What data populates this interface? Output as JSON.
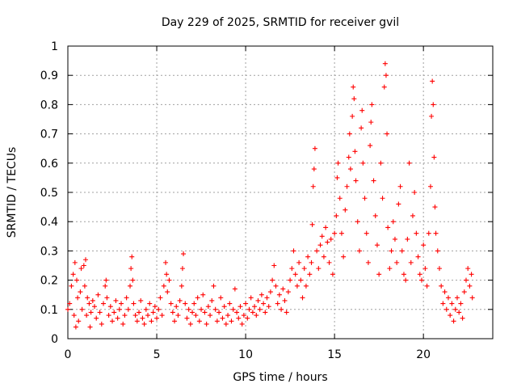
{
  "chart_data": {
    "type": "scatter",
    "title": "Day 229 of 2025, SRMTID for receiver gvil",
    "xlabel": "GPS time / hours",
    "ylabel": "SRMTID / TECUs",
    "xlim": [
      0,
      23.9
    ],
    "ylim": [
      0,
      1
    ],
    "x_ticks": [
      0,
      5,
      10,
      15,
      20
    ],
    "x_tick_labels": [
      "0",
      "5",
      "10",
      "15",
      "20"
    ],
    "y_ticks": [
      0,
      0.1,
      0.2,
      0.3,
      0.4,
      0.5,
      0.6,
      0.7,
      0.8,
      0.9,
      1
    ],
    "y_tick_labels": [
      "0",
      "0.1",
      "0.2",
      "0.3",
      "0.4",
      "0.5",
      "0.6",
      "0.7",
      "0.8",
      "0.9",
      "1"
    ],
    "grid": true,
    "marker": "plus",
    "color": "#ff0000",
    "series": [
      {
        "name": "SRMTID",
        "points": [
          [
            0.0,
            0.1
          ],
          [
            0.1,
            0.12
          ],
          [
            0.2,
            0.18
          ],
          [
            0.3,
            0.22
          ],
          [
            0.35,
            0.08
          ],
          [
            0.4,
            0.26
          ],
          [
            0.45,
            0.04
          ],
          [
            0.5,
            0.2
          ],
          [
            0.55,
            0.14
          ],
          [
            0.6,
            0.06
          ],
          [
            0.7,
            0.16
          ],
          [
            0.75,
            0.24
          ],
          [
            0.8,
            0.1
          ],
          [
            0.9,
            0.25
          ],
          [
            0.95,
            0.18
          ],
          [
            1.0,
            0.27
          ],
          [
            1.05,
            0.08
          ],
          [
            1.1,
            0.14
          ],
          [
            1.2,
            0.12
          ],
          [
            1.25,
            0.04
          ],
          [
            1.3,
            0.09
          ],
          [
            1.4,
            0.13
          ],
          [
            1.5,
            0.11
          ],
          [
            1.6,
            0.07
          ],
          [
            1.7,
            0.15
          ],
          [
            1.8,
            0.09
          ],
          [
            1.9,
            0.05
          ],
          [
            2.0,
            0.12
          ],
          [
            2.1,
            0.18
          ],
          [
            2.15,
            0.2
          ],
          [
            2.2,
            0.14
          ],
          [
            2.3,
            0.08
          ],
          [
            2.4,
            0.11
          ],
          [
            2.5,
            0.06
          ],
          [
            2.6,
            0.09
          ],
          [
            2.7,
            0.13
          ],
          [
            2.8,
            0.07
          ],
          [
            2.9,
            0.1
          ],
          [
            3.0,
            0.12
          ],
          [
            3.1,
            0.05
          ],
          [
            3.2,
            0.08
          ],
          [
            3.3,
            0.14
          ],
          [
            3.4,
            0.1
          ],
          [
            3.5,
            0.18
          ],
          [
            3.55,
            0.24
          ],
          [
            3.6,
            0.28
          ],
          [
            3.65,
            0.2
          ],
          [
            3.7,
            0.12
          ],
          [
            3.8,
            0.08
          ],
          [
            3.9,
            0.06
          ],
          [
            4.0,
            0.09
          ],
          [
            4.1,
            0.13
          ],
          [
            4.2,
            0.07
          ],
          [
            4.3,
            0.05
          ],
          [
            4.4,
            0.1
          ],
          [
            4.5,
            0.08
          ],
          [
            4.6,
            0.12
          ],
          [
            4.7,
            0.06
          ],
          [
            4.8,
            0.09
          ],
          [
            4.9,
            0.11
          ],
          [
            5.0,
            0.07
          ],
          [
            5.1,
            0.1
          ],
          [
            5.2,
            0.14
          ],
          [
            5.3,
            0.08
          ],
          [
            5.4,
            0.18
          ],
          [
            5.5,
            0.26
          ],
          [
            5.55,
            0.22
          ],
          [
            5.6,
            0.16
          ],
          [
            5.7,
            0.2
          ],
          [
            5.8,
            0.12
          ],
          [
            5.9,
            0.09
          ],
          [
            6.0,
            0.06
          ],
          [
            6.1,
            0.11
          ],
          [
            6.2,
            0.08
          ],
          [
            6.3,
            0.13
          ],
          [
            6.4,
            0.18
          ],
          [
            6.45,
            0.24
          ],
          [
            6.5,
            0.29
          ],
          [
            6.6,
            0.12
          ],
          [
            6.7,
            0.07
          ],
          [
            6.8,
            0.1
          ],
          [
            6.9,
            0.05
          ],
          [
            7.0,
            0.09
          ],
          [
            7.1,
            0.12
          ],
          [
            7.2,
            0.08
          ],
          [
            7.3,
            0.14
          ],
          [
            7.4,
            0.06
          ],
          [
            7.5,
            0.1
          ],
          [
            7.6,
            0.15
          ],
          [
            7.7,
            0.09
          ],
          [
            7.8,
            0.05
          ],
          [
            7.9,
            0.11
          ],
          [
            8.0,
            0.08
          ],
          [
            8.1,
            0.13
          ],
          [
            8.2,
            0.18
          ],
          [
            8.3,
            0.1
          ],
          [
            8.4,
            0.06
          ],
          [
            8.5,
            0.09
          ],
          [
            8.6,
            0.14
          ],
          [
            8.7,
            0.07
          ],
          [
            8.8,
            0.11
          ],
          [
            8.9,
            0.05
          ],
          [
            9.0,
            0.08
          ],
          [
            9.1,
            0.12
          ],
          [
            9.2,
            0.06
          ],
          [
            9.3,
            0.1
          ],
          [
            9.4,
            0.17
          ],
          [
            9.5,
            0.09
          ],
          [
            9.6,
            0.07
          ],
          [
            9.7,
            0.11
          ],
          [
            9.8,
            0.05
          ],
          [
            9.9,
            0.08
          ],
          [
            10.0,
            0.12
          ],
          [
            10.1,
            0.07
          ],
          [
            10.2,
            0.1
          ],
          [
            10.3,
            0.14
          ],
          [
            10.4,
            0.09
          ],
          [
            10.5,
            0.11
          ],
          [
            10.6,
            0.08
          ],
          [
            10.7,
            0.13
          ],
          [
            10.8,
            0.1
          ],
          [
            10.9,
            0.15
          ],
          [
            11.0,
            0.12
          ],
          [
            11.1,
            0.09
          ],
          [
            11.2,
            0.14
          ],
          [
            11.3,
            0.11
          ],
          [
            11.4,
            0.16
          ],
          [
            11.5,
            0.2
          ],
          [
            11.6,
            0.25
          ],
          [
            11.7,
            0.18
          ],
          [
            11.8,
            0.12
          ],
          [
            11.9,
            0.15
          ],
          [
            12.0,
            0.1
          ],
          [
            12.1,
            0.17
          ],
          [
            12.2,
            0.13
          ],
          [
            12.3,
            0.09
          ],
          [
            12.4,
            0.16
          ],
          [
            12.5,
            0.2
          ],
          [
            12.6,
            0.24
          ],
          [
            12.7,
            0.3
          ],
          [
            12.8,
            0.22
          ],
          [
            12.9,
            0.18
          ],
          [
            13.0,
            0.26
          ],
          [
            13.1,
            0.2
          ],
          [
            13.2,
            0.14
          ],
          [
            13.3,
            0.24
          ],
          [
            13.4,
            0.18
          ],
          [
            13.5,
            0.28
          ],
          [
            13.6,
            0.22
          ],
          [
            13.7,
            0.26
          ],
          [
            13.75,
            0.39
          ],
          [
            13.8,
            0.52
          ],
          [
            13.85,
            0.58
          ],
          [
            13.9,
            0.65
          ],
          [
            14.0,
            0.3
          ],
          [
            14.1,
            0.24
          ],
          [
            14.2,
            0.32
          ],
          [
            14.3,
            0.35
          ],
          [
            14.4,
            0.28
          ],
          [
            14.5,
            0.38
          ],
          [
            14.6,
            0.33
          ],
          [
            14.7,
            0.26
          ],
          [
            14.8,
            0.34
          ],
          [
            14.9,
            0.22
          ],
          [
            15.0,
            0.36
          ],
          [
            15.1,
            0.42
          ],
          [
            15.15,
            0.55
          ],
          [
            15.2,
            0.6
          ],
          [
            15.3,
            0.48
          ],
          [
            15.4,
            0.36
          ],
          [
            15.5,
            0.28
          ],
          [
            15.6,
            0.44
          ],
          [
            15.7,
            0.52
          ],
          [
            15.8,
            0.62
          ],
          [
            15.85,
            0.7
          ],
          [
            15.9,
            0.58
          ],
          [
            16.0,
            0.76
          ],
          [
            16.05,
            0.86
          ],
          [
            16.1,
            0.82
          ],
          [
            16.15,
            0.64
          ],
          [
            16.2,
            0.54
          ],
          [
            16.3,
            0.4
          ],
          [
            16.4,
            0.3
          ],
          [
            16.5,
            0.72
          ],
          [
            16.55,
            0.78
          ],
          [
            16.6,
            0.6
          ],
          [
            16.7,
            0.48
          ],
          [
            16.8,
            0.36
          ],
          [
            16.9,
            0.26
          ],
          [
            17.0,
            0.66
          ],
          [
            17.05,
            0.74
          ],
          [
            17.1,
            0.8
          ],
          [
            17.2,
            0.54
          ],
          [
            17.3,
            0.42
          ],
          [
            17.4,
            0.32
          ],
          [
            17.5,
            0.22
          ],
          [
            17.6,
            0.6
          ],
          [
            17.7,
            0.48
          ],
          [
            17.8,
            0.86
          ],
          [
            17.85,
            0.94
          ],
          [
            17.9,
            0.9
          ],
          [
            17.95,
            0.7
          ],
          [
            18.0,
            0.38
          ],
          [
            18.1,
            0.24
          ],
          [
            18.2,
            0.3
          ],
          [
            18.3,
            0.4
          ],
          [
            18.4,
            0.34
          ],
          [
            18.5,
            0.26
          ],
          [
            18.6,
            0.46
          ],
          [
            18.7,
            0.52
          ],
          [
            18.8,
            0.3
          ],
          [
            18.9,
            0.22
          ],
          [
            19.0,
            0.2
          ],
          [
            19.1,
            0.34
          ],
          [
            19.2,
            0.6
          ],
          [
            19.3,
            0.26
          ],
          [
            19.4,
            0.42
          ],
          [
            19.5,
            0.5
          ],
          [
            19.6,
            0.36
          ],
          [
            19.7,
            0.28
          ],
          [
            19.8,
            0.22
          ],
          [
            19.9,
            0.2
          ],
          [
            20.0,
            0.32
          ],
          [
            20.1,
            0.24
          ],
          [
            20.2,
            0.18
          ],
          [
            20.3,
            0.36
          ],
          [
            20.4,
            0.52
          ],
          [
            20.45,
            0.76
          ],
          [
            20.5,
            0.88
          ],
          [
            20.55,
            0.8
          ],
          [
            20.6,
            0.62
          ],
          [
            20.65,
            0.45
          ],
          [
            20.7,
            0.36
          ],
          [
            20.8,
            0.3
          ],
          [
            20.9,
            0.24
          ],
          [
            21.0,
            0.18
          ],
          [
            21.1,
            0.12
          ],
          [
            21.2,
            0.16
          ],
          [
            21.3,
            0.1
          ],
          [
            21.4,
            0.14
          ],
          [
            21.5,
            0.08
          ],
          [
            21.6,
            0.12
          ],
          [
            21.7,
            0.06
          ],
          [
            21.8,
            0.1
          ],
          [
            21.9,
            0.14
          ],
          [
            22.0,
            0.09
          ],
          [
            22.1,
            0.12
          ],
          [
            22.2,
            0.07
          ],
          [
            22.3,
            0.16
          ],
          [
            22.4,
            0.2
          ],
          [
            22.5,
            0.24
          ],
          [
            22.6,
            0.18
          ],
          [
            22.7,
            0.22
          ],
          [
            22.75,
            0.14
          ]
        ]
      }
    ]
  }
}
